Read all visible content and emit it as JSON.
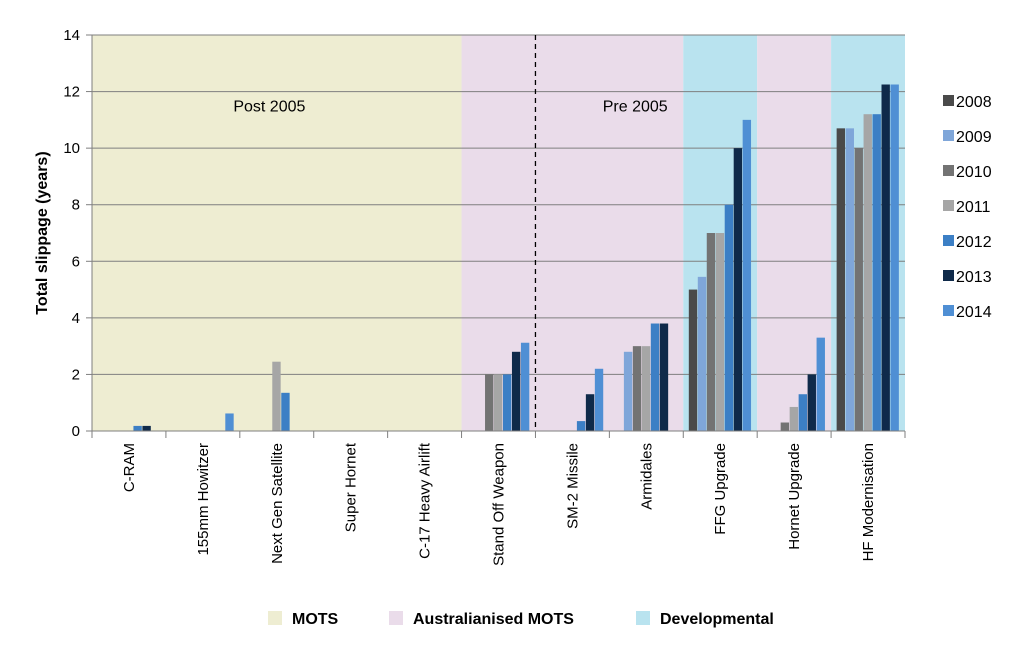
{
  "chart_data": {
    "type": "bar",
    "ylabel": "Total slippage (years)",
    "ylim": [
      0,
      14
    ],
    "yticks": [
      "0",
      "2",
      "4",
      "6",
      "8",
      "10",
      "12",
      "14"
    ],
    "categories": [
      "C-RAM",
      "155mm Howitzer",
      "Next Gen Satellite",
      "Super Hornet",
      "C-17 Heavy Airlift",
      "Stand Off Weapon",
      "SM-2 Missile",
      "Armidales",
      "FFG Upgrade",
      "Hornet Upgrade",
      "HF Modernisation"
    ],
    "series": [
      {
        "name": "2008",
        "color": "#4a4a4a",
        "values": [
          0,
          0,
          0,
          0,
          0,
          0,
          0,
          0,
          5.0,
          0,
          10.7
        ]
      },
      {
        "name": "2009",
        "color": "#7fa6d9",
        "values": [
          0,
          0,
          0,
          0,
          0,
          0,
          0,
          2.8,
          5.45,
          0,
          10.7
        ]
      },
      {
        "name": "2010",
        "color": "#737373",
        "values": [
          0,
          0,
          0,
          0,
          0,
          2.0,
          0,
          3.0,
          7.0,
          0.3,
          10.0
        ]
      },
      {
        "name": "2011",
        "color": "#a6a6a6",
        "values": [
          0,
          0,
          2.45,
          0,
          0,
          2.0,
          0,
          3.0,
          7.0,
          0.85,
          11.2
        ]
      },
      {
        "name": "2012",
        "color": "#3c7fc5",
        "values": [
          0.18,
          0,
          1.35,
          0,
          0,
          2.0,
          0.35,
          3.8,
          8.0,
          1.3,
          11.2
        ]
      },
      {
        "name": "2013",
        "color": "#0f2a4a",
        "values": [
          0.18,
          0,
          0,
          0,
          0,
          2.8,
          1.3,
          3.8,
          10.0,
          2.0,
          12.25
        ]
      },
      {
        "name": "2014",
        "color": "#4f8fd4",
        "values": [
          0,
          0.62,
          0,
          0,
          0,
          3.12,
          2.2,
          0,
          11.0,
          3.3,
          12.25
        ]
      }
    ],
    "regions": [
      {
        "name": "MOTS",
        "color": "#eeedd2",
        "from": 0,
        "to": 5
      },
      {
        "name": "Australianised MOTS",
        "color": "#eadcea",
        "from": 5,
        "to": 8
      },
      {
        "name": "Developmental",
        "color": "#b9e3ef",
        "from": 8,
        "to": 9
      },
      {
        "name": "Australianised MOTS",
        "color": "#eadcea",
        "from": 9,
        "to": 10
      },
      {
        "name": "Developmental",
        "color": "#b9e3ef",
        "from": 10,
        "to": 11
      }
    ],
    "annotations": [
      {
        "text": "Post 2005",
        "at": 2.4,
        "y": 11.5
      },
      {
        "text": "Pre 2005",
        "at": 7.35,
        "y": 11.5
      }
    ],
    "divider_at": 6,
    "bottom_legend": [
      {
        "label": "MOTS",
        "color": "#eeedd2"
      },
      {
        "label": "Australianised MOTS",
        "color": "#eadcea"
      },
      {
        "label": "Developmental",
        "color": "#b9e3ef"
      }
    ],
    "grid": true,
    "legend": "right"
  }
}
